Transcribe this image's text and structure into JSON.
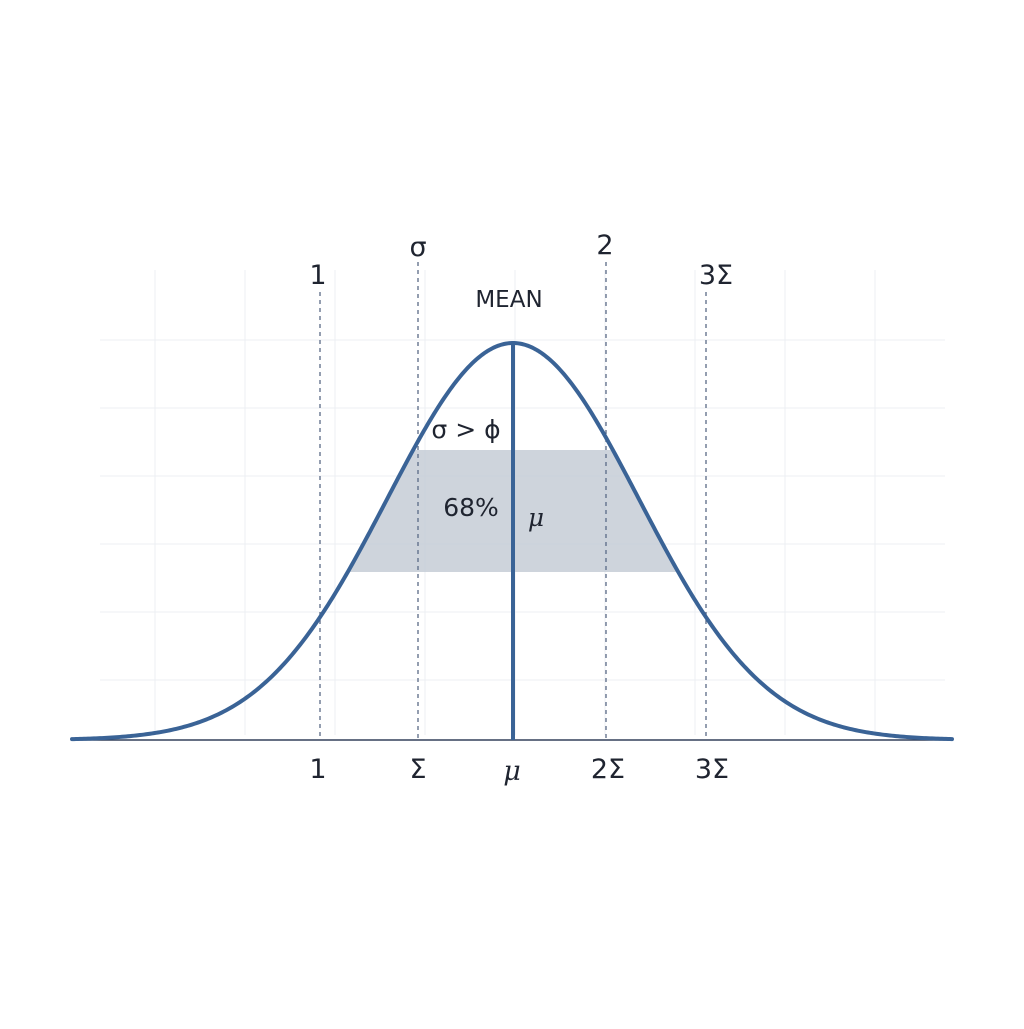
{
  "diagram": {
    "top_labels": [
      "1",
      "σ",
      "2",
      "3Σ"
    ],
    "mean_label": "MEAN",
    "inner_label_top": "σ > ϕ",
    "percent_label": "68%",
    "mu_inner_label": "μ",
    "axis_labels": [
      "1",
      "Σ",
      "μ",
      "2Σ",
      "3Σ"
    ],
    "colors": {
      "curve": "#3a6396",
      "shade": "#c6ccd6",
      "axis": "#33415c",
      "grid": "#eceff3",
      "dashed": "#5a6a86",
      "text": "#1f2430"
    }
  }
}
